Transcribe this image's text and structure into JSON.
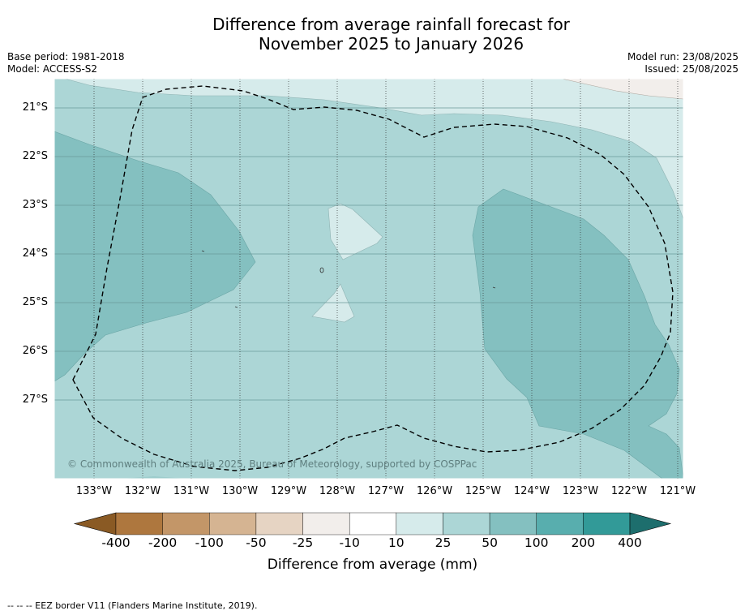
{
  "title_line1": "Difference from average rainfall forecast for",
  "title_line2": "November 2025 to January 2026",
  "base_period": "Base period: 1981-2018",
  "model": "Model: ACCESS-S2",
  "model_run": "Model run: 23/08/2025",
  "issued": "Issued: 25/08/2025",
  "copyright": "© Commonwealth of Australia 2025, Bureau of Meteorology, supported by COSPPac",
  "lat_labels": [
    "21°S",
    "22°S",
    "23°S",
    "24°S",
    "25°S",
    "26°S",
    "27°S"
  ],
  "lon_labels": [
    "133°W",
    "132°W",
    "131°W",
    "130°W",
    "129°W",
    "128°W",
    "127°W",
    "126°W",
    "125°W",
    "124°W",
    "123°W",
    "122°W",
    "121°W"
  ],
  "colorbar": {
    "labels": [
      "-400",
      "-200",
      "-100",
      "-50",
      "-25",
      "-10",
      "10",
      "25",
      "50",
      "100",
      "200",
      "400"
    ],
    "colors": [
      "#8a5a24",
      "#ae773e",
      "#c39668",
      "#d5b492",
      "#e6d4c3",
      "#f2eeeb",
      "#ffffff",
      "#d6ebeb",
      "#acd6d6",
      "#84c0c0",
      "#58aeae",
      "#329a98",
      "#1d6e6d"
    ],
    "title": "Difference from average (mm)"
  },
  "map_colors": {
    "band_10_25": "#d6ebeb",
    "band_25_50": "#acd6d6",
    "band_50_100": "#84c0c0",
    "band_neg": "#f2eeeb"
  },
  "footnote": "--  --  -- EEZ border V11 (Flanders Marine Institute, 2019)."
}
